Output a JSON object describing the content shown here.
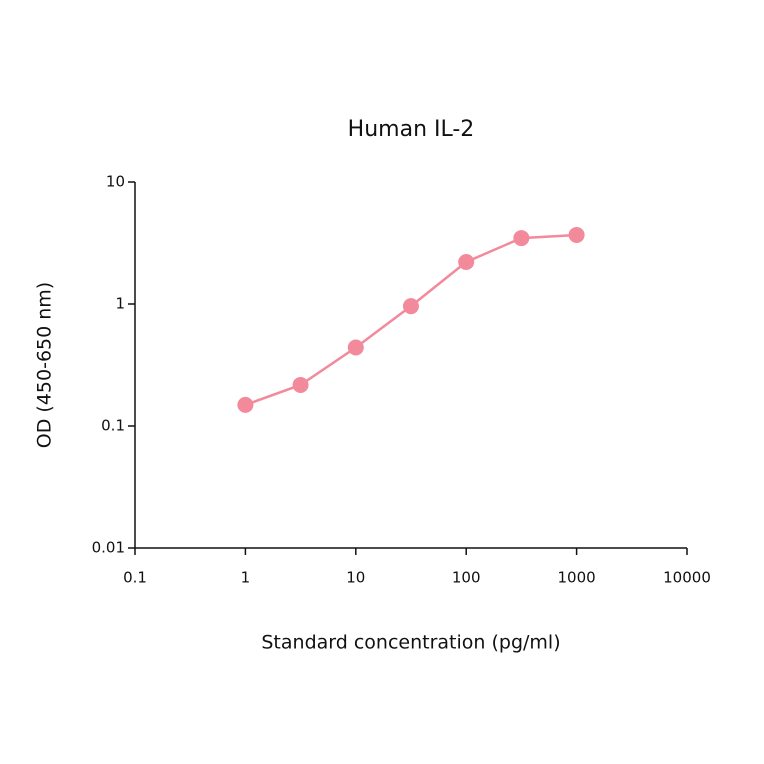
{
  "chart_data": {
    "type": "line",
    "title": "Human IL-2",
    "x_label": "Standard concentration (pg/ml)",
    "y_label": "OD (450-650 nm)",
    "x_scale": "log",
    "y_scale": "log",
    "x": [
      1,
      3.16,
      10,
      31.6,
      100,
      316,
      1000
    ],
    "series": [
      {
        "name": "Human IL-2",
        "color": "#f28a9b",
        "values": [
          0.149,
          0.217,
          0.44,
          0.96,
          2.21,
          3.47,
          3.68
        ]
      }
    ],
    "xlim": [
      0.1,
      10000
    ],
    "xticks": [
      0.1,
      1,
      10,
      100,
      1000,
      10000
    ],
    "ylim": [
      0.01,
      10
    ],
    "yticks": [
      0.01,
      0.1,
      1,
      10
    ]
  }
}
